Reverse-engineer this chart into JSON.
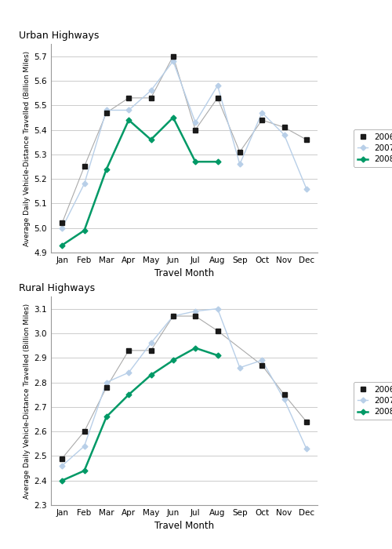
{
  "months": [
    "Jan",
    "Feb",
    "Mar",
    "Apr",
    "May",
    "Jun",
    "Jul",
    "Aug",
    "Sep",
    "Oct",
    "Nov",
    "Dec"
  ],
  "urban": {
    "title": "Urban Highways",
    "ylabel": "Average Daily Vehicle-Distance Travelled (Billion Miles)",
    "xlabel": "Travel Month",
    "ylim": [
      4.9,
      5.75
    ],
    "yticks": [
      4.9,
      5.0,
      5.1,
      5.2,
      5.3,
      5.4,
      5.5,
      5.6,
      5.7
    ],
    "y2006": [
      5.02,
      5.25,
      5.47,
      5.53,
      5.53,
      5.7,
      5.4,
      5.53,
      5.31,
      5.44,
      5.41,
      5.36
    ],
    "y2007": [
      5.0,
      5.18,
      5.48,
      5.48,
      5.56,
      5.68,
      5.43,
      5.58,
      5.26,
      5.47,
      5.38,
      5.16
    ],
    "y2008": [
      4.93,
      4.99,
      5.24,
      5.44,
      5.36,
      5.45,
      5.27,
      5.27,
      null,
      null,
      null,
      null
    ]
  },
  "rural": {
    "title": "Rural Highways",
    "ylabel": "Average Daily Vehicle-Distance Travelled (Billion Miles)",
    "xlabel": "Travel Month",
    "ylim": [
      2.3,
      3.15
    ],
    "yticks": [
      2.3,
      2.4,
      2.5,
      2.6,
      2.7,
      2.8,
      2.9,
      3.0,
      3.1
    ],
    "y2006": [
      2.49,
      2.6,
      2.78,
      2.93,
      2.93,
      3.07,
      3.07,
      3.01,
      null,
      2.87,
      2.75,
      2.64
    ],
    "y2007": [
      2.46,
      2.54,
      2.8,
      2.84,
      2.96,
      3.07,
      3.09,
      3.1,
      2.86,
      2.89,
      2.73,
      2.53
    ],
    "y2008": [
      2.4,
      2.44,
      2.66,
      2.75,
      2.83,
      2.89,
      2.94,
      2.91,
      null,
      null,
      null,
      null
    ]
  },
  "color_2006": "#1a1a1a",
  "color_2007": "#b8cfe8",
  "color_2008": "#009966",
  "line_2006": "#aaaaaa",
  "bg_color": "#ffffff",
  "grid_color": "#cccccc"
}
